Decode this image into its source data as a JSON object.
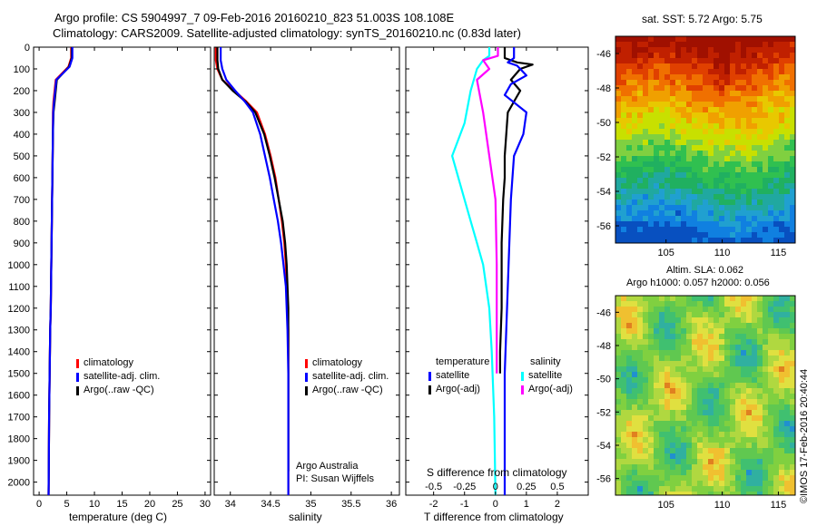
{
  "header": {
    "title_line1": "Argo profile: CS 5904997_7 09-Feb-2016 20160210_823 51.003S 108.108E",
    "title_line2": "Climatology: CARS2009. Satellite-adjusted climatology: synTS_20160210.nc (0.83d later)"
  },
  "colors": {
    "climatology": "#ff0000",
    "satellite": "#0000ff",
    "argo": "#000000",
    "s_satellite": "#00ffff",
    "s_argo": "#ff00ff"
  },
  "chart_data": [
    {
      "type": "line",
      "panel": "temperature",
      "xlabel": "temperature (deg C)",
      "xlim": [
        -1,
        31
      ],
      "xticks": [
        0,
        5,
        10,
        15,
        20,
        25,
        30
      ],
      "ylim": [
        0,
        2060
      ],
      "yticks": [
        0,
        100,
        200,
        300,
        400,
        500,
        600,
        700,
        800,
        900,
        1000,
        1100,
        1200,
        1300,
        1400,
        1500,
        1600,
        1700,
        1800,
        1900,
        2000
      ],
      "invert_y": true,
      "legend": [
        "climatology",
        "satellite-adj. clim.",
        "Argo(..raw -QC)"
      ],
      "series": [
        {
          "name": "climatology",
          "x": [
            5.8,
            5.8,
            5.3,
            3.0,
            2.6,
            2.5,
            2.5,
            2.45,
            2.4,
            2.35,
            2.3,
            2.25,
            2.2,
            2.15,
            2.1,
            2.0,
            1.95,
            1.9,
            1.85,
            1.8,
            1.75,
            1.7
          ],
          "y": [
            0,
            50,
            90,
            150,
            250,
            300,
            400,
            500,
            600,
            700,
            800,
            900,
            1000,
            1100,
            1200,
            1300,
            1400,
            1500,
            1600,
            1700,
            1900,
            2060
          ]
        },
        {
          "name": "satellite-adj. clim.",
          "x": [
            6.0,
            6.0,
            5.5,
            3.1,
            2.7,
            2.55,
            2.5,
            2.45,
            2.4,
            2.35,
            2.3,
            2.25,
            2.2,
            2.15,
            2.1,
            2.0,
            1.95,
            1.9,
            1.85,
            1.8,
            1.75,
            1.7
          ],
          "y": [
            0,
            50,
            90,
            150,
            250,
            300,
            400,
            500,
            600,
            700,
            800,
            900,
            1000,
            1100,
            1200,
            1300,
            1400,
            1500,
            1600,
            1700,
            1900,
            2060
          ]
        },
        {
          "name": "Argo(..raw -QC)",
          "x": [
            5.9,
            5.9,
            5.4,
            3.2,
            2.8,
            2.6,
            2.5,
            2.45,
            2.4,
            2.35,
            2.3,
            2.25,
            2.2,
            2.15,
            2.1,
            2.0,
            1.95,
            1.9,
            1.85,
            1.8,
            1.75,
            1.7
          ],
          "y": [
            0,
            50,
            90,
            150,
            250,
            300,
            400,
            500,
            600,
            700,
            800,
            900,
            1000,
            1100,
            1200,
            1300,
            1400,
            1500,
            1600,
            1700,
            1900,
            2060
          ]
        }
      ]
    },
    {
      "type": "line",
      "panel": "salinity",
      "xlabel": "salinity",
      "xlim": [
        33.8,
        36.1
      ],
      "xticks": [
        34,
        34.5,
        35,
        35.5,
        36
      ],
      "xticklabels": [
        "34",
        "34.5",
        "35",
        "35.5",
        "36"
      ],
      "ylim": [
        0,
        2060
      ],
      "invert_y": true,
      "legend": [
        "climatology",
        "satellite-adj. clim.",
        "Argo(..raw -QC)"
      ],
      "annotation": [
        "Argo Australia",
        "PI: Susan Wijffels"
      ],
      "series": [
        {
          "name": "climatology",
          "x": [
            33.82,
            33.82,
            33.84,
            33.9,
            34.05,
            34.2,
            34.33,
            34.43,
            34.5,
            34.56,
            34.6,
            34.64,
            34.67,
            34.69,
            34.7,
            34.71,
            34.72,
            34.72,
            34.72,
            34.72,
            34.72
          ],
          "y": [
            0,
            60,
            100,
            150,
            200,
            250,
            300,
            400,
            500,
            600,
            700,
            800,
            900,
            1000,
            1100,
            1200,
            1300,
            1500,
            1700,
            1900,
            2060
          ]
        },
        {
          "name": "satellite-adj. clim.",
          "x": [
            33.88,
            33.88,
            33.9,
            33.95,
            34.06,
            34.18,
            34.28,
            34.37,
            34.43,
            34.49,
            34.54,
            34.59,
            34.63,
            34.66,
            34.69,
            34.7,
            34.71,
            34.72,
            34.72,
            34.72,
            34.72
          ],
          "y": [
            0,
            60,
            100,
            150,
            200,
            250,
            300,
            400,
            500,
            600,
            700,
            800,
            900,
            1000,
            1100,
            1200,
            1300,
            1500,
            1700,
            1900,
            2060
          ]
        },
        {
          "name": "Argo(..raw -QC)",
          "x": [
            33.84,
            33.84,
            33.85,
            33.9,
            34.03,
            34.19,
            34.31,
            34.42,
            34.49,
            34.55,
            34.6,
            34.65,
            34.68,
            34.7,
            34.71,
            34.72,
            34.72,
            34.72,
            34.72,
            34.72
          ],
          "y": [
            0,
            60,
            100,
            150,
            200,
            250,
            300,
            400,
            500,
            600,
            700,
            800,
            900,
            1000,
            1100,
            1200,
            1300,
            1500,
            1700,
            1950
          ]
        }
      ]
    },
    {
      "type": "line",
      "panel": "difference",
      "xlabel": "T difference from climatology",
      "xlabel_top": "S difference from climatology",
      "xlim": [
        -2.9,
        3.0
      ],
      "xticks": [
        -2,
        -1,
        0,
        1,
        2
      ],
      "xticks_top": [
        -0.5,
        -0.25,
        0,
        0.25,
        0.5
      ],
      "xticklabels_top": [
        "-0.5",
        "-0.25",
        "0",
        "0.25",
        "0.5"
      ],
      "ylim": [
        0,
        2060
      ],
      "invert_y": true,
      "legend_temperature_title": "temperature",
      "legend_salinity_title": "salinity",
      "legend_temperature": [
        "satellite",
        "Argo(-adj)"
      ],
      "legend_salinity": [
        "satellite",
        "Argo(-adj)"
      ],
      "series": [
        {
          "name": "T satellite",
          "x": [
            0.6,
            0.6,
            0.4,
            0.7,
            0.8,
            1.0,
            0.5,
            0.3,
            1.0,
            0.9,
            0.6,
            0.5,
            0.45,
            0.4,
            0.35,
            0.3,
            0.3,
            0.3,
            0.3,
            0.3,
            0.3,
            0.3
          ],
          "y": [
            0,
            50,
            70,
            85,
            100,
            130,
            170,
            220,
            300,
            400,
            500,
            700,
            900,
            1100,
            1300,
            1500,
            1600,
            1700,
            1800,
            1900,
            2000,
            2060
          ]
        },
        {
          "name": "T Argo(-adj)",
          "x": [
            0.3,
            0.3,
            0.7,
            1.2,
            0.8,
            0.5,
            0.8,
            0.6,
            0.4,
            0.35,
            0.3,
            0.3,
            0.25,
            0.2,
            0.2,
            0.15,
            0.15
          ],
          "y": [
            0,
            50,
            70,
            80,
            100,
            150,
            200,
            250,
            300,
            400,
            500,
            600,
            700,
            900,
            1200,
            1400,
            1500
          ]
        },
        {
          "name": "S satellite",
          "x": [
            -0.05,
            -0.05,
            -0.1,
            -0.15,
            -0.2,
            -0.25,
            -0.35,
            -0.3,
            -0.25,
            -0.2,
            -0.15,
            -0.1,
            -0.05,
            -0.03,
            -0.01,
            0.0
          ],
          "y": [
            0,
            40,
            60,
            100,
            200,
            350,
            500,
            600,
            700,
            800,
            900,
            1000,
            1200,
            1400,
            1700,
            2060
          ]
        },
        {
          "name": "S Argo(-adj)",
          "x": [
            0.02,
            0.02,
            -0.1,
            -0.05,
            -0.15,
            -0.1,
            -0.05,
            0.0,
            0.01,
            0.01,
            0.01
          ],
          "y": [
            0,
            40,
            60,
            100,
            150,
            300,
            500,
            700,
            1000,
            1400,
            1500
          ]
        }
      ]
    },
    {
      "type": "heatmap",
      "panel": "sst_map",
      "title": "sat. SST: 5.72 Argo: 5.75",
      "xticks": [
        105,
        110,
        115
      ],
      "xlim": [
        100.5,
        116.5
      ],
      "yticks": [
        -46,
        -48,
        -50,
        -52,
        -54,
        -56
      ],
      "ylim": [
        -57,
        -45
      ]
    },
    {
      "type": "heatmap",
      "panel": "sla_map",
      "title": "Altim. SLA: 0.062",
      "subtitle": "Argo h1000: 0.057 h2000: 0.056",
      "xticks": [
        105,
        110,
        115
      ],
      "xlim": [
        100.5,
        116.5
      ],
      "yticks": [
        -46,
        -48,
        -50,
        -52,
        -54,
        -56
      ],
      "ylim": [
        -57,
        -45
      ]
    }
  ],
  "footer": {
    "stamp": "©IMOS 17-Feb-2016 20:40:44"
  }
}
